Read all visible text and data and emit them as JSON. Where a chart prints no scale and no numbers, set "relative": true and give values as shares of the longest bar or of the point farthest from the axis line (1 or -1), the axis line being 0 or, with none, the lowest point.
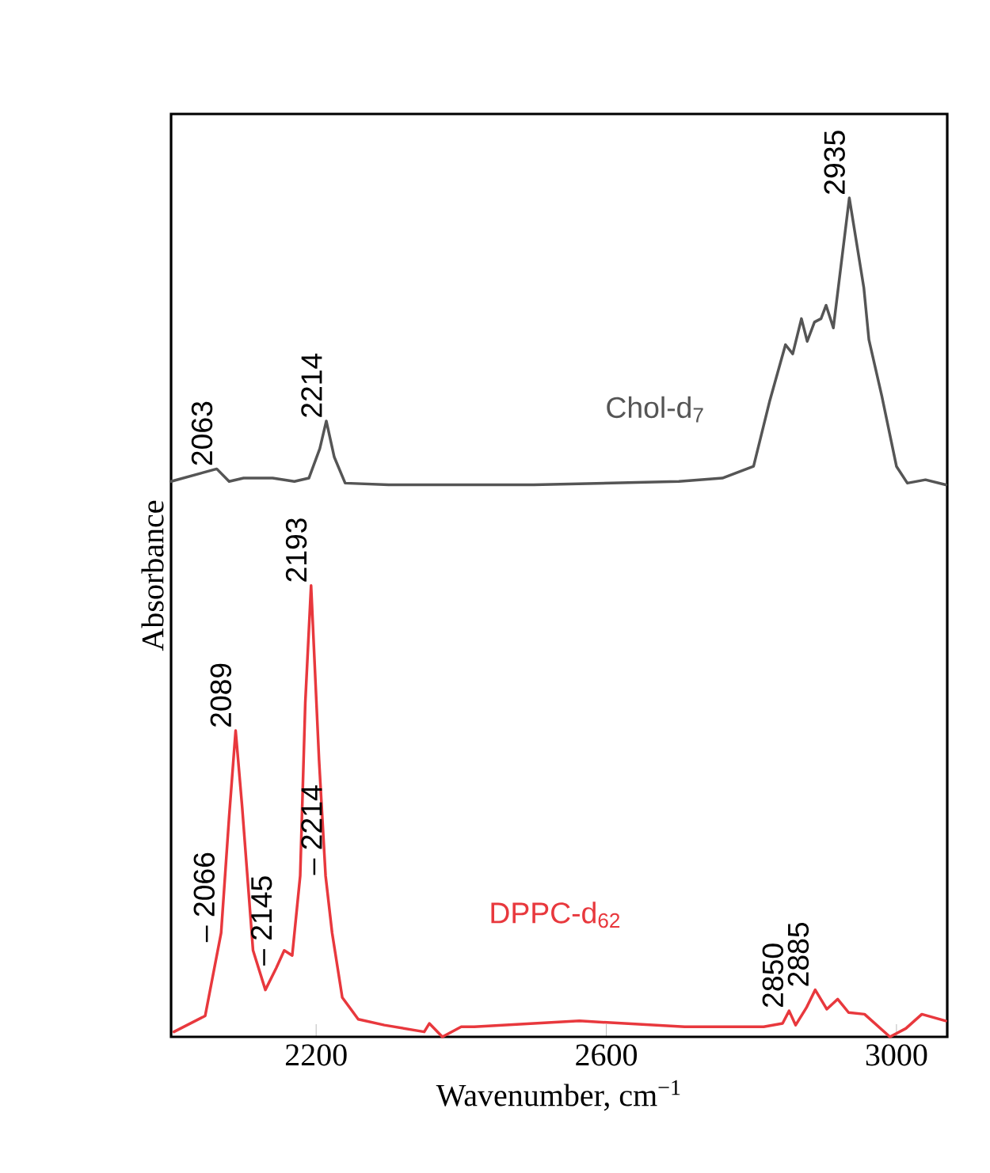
{
  "chart_data": {
    "type": "line",
    "relative": true,
    "xlabel": "Wavenumber, cm$^{−1}$",
    "ylabel": "Absorbance",
    "xlim": [
      2000,
      3070
    ],
    "xticks": [
      2200,
      2600,
      3000
    ],
    "series": [
      {
        "name": "Chol-d$_{7}$",
        "color": "#555555",
        "x": [
          2000,
          2063,
          2080,
          2100,
          2140,
          2170,
          2190,
          2205,
          2214,
          2225,
          2240,
          2300,
          2500,
          2700,
          2760,
          2803,
          2825,
          2847,
          2857,
          2869,
          2877,
          2887,
          2896,
          2903,
          2913,
          2935,
          2955,
          2962,
          2980,
          3000,
          3015,
          3040,
          3068
        ],
        "values": [
          0.662,
          0.677,
          0.662,
          0.666,
          0.666,
          0.662,
          0.666,
          0.701,
          0.734,
          0.691,
          0.66,
          0.658,
          0.658,
          0.662,
          0.666,
          0.68,
          0.757,
          0.825,
          0.814,
          0.856,
          0.829,
          0.852,
          0.856,
          0.872,
          0.845,
          1.0,
          0.893,
          0.831,
          0.763,
          0.68,
          0.66,
          0.664,
          0.658
        ]
      },
      {
        "name": "DPPC-d$_{62}$",
        "color": "#e8383d",
        "x": [
          2004,
          2047,
          2069,
          2080,
          2089,
          2098,
          2113,
          2130,
          2145,
          2156,
          2167,
          2178,
          2185,
          2193,
          2204,
          2213,
          2222,
          2236,
          2258,
          2294,
          2349,
          2356,
          2374,
          2400,
          2418,
          2563,
          2708,
          2817,
          2843,
          2852,
          2861,
          2876,
          2888,
          2904,
          2919,
          2934,
          2956,
          2991,
          3013,
          3035,
          3068
        ],
        "values": [
          0.006,
          0.025,
          0.124,
          0.262,
          0.365,
          0.274,
          0.103,
          0.056,
          0.082,
          0.103,
          0.097,
          0.192,
          0.398,
          0.538,
          0.33,
          0.192,
          0.124,
          0.047,
          0.021,
          0.014,
          0.006,
          0.016,
          0.0,
          0.012,
          0.012,
          0.019,
          0.012,
          0.012,
          0.016,
          0.031,
          0.014,
          0.035,
          0.056,
          0.033,
          0.045,
          0.029,
          0.027,
          0.0,
          0.01,
          0.027,
          0.019
        ]
      }
    ],
    "annotations": [
      {
        "text": "2063",
        "x": 2063,
        "y": 0.677
      },
      {
        "text": "2214",
        "x": 2214,
        "y": 0.734
      },
      {
        "text": "2935",
        "x": 2935,
        "y": 1.0
      },
      {
        "text": "– 2066",
        "x": 2066,
        "y": 0.11
      },
      {
        "text": "2089",
        "x": 2089,
        "y": 0.365
      },
      {
        "text": "– 2145",
        "x": 2145,
        "y": 0.082
      },
      {
        "text": "2193",
        "x": 2193,
        "y": 0.538
      },
      {
        "text": "– 2214",
        "x": 2214,
        "y": 0.19
      },
      {
        "text": "2850",
        "x": 2850,
        "y": 0.031
      },
      {
        "text": "2885",
        "x": 2885,
        "y": 0.056
      }
    ]
  }
}
